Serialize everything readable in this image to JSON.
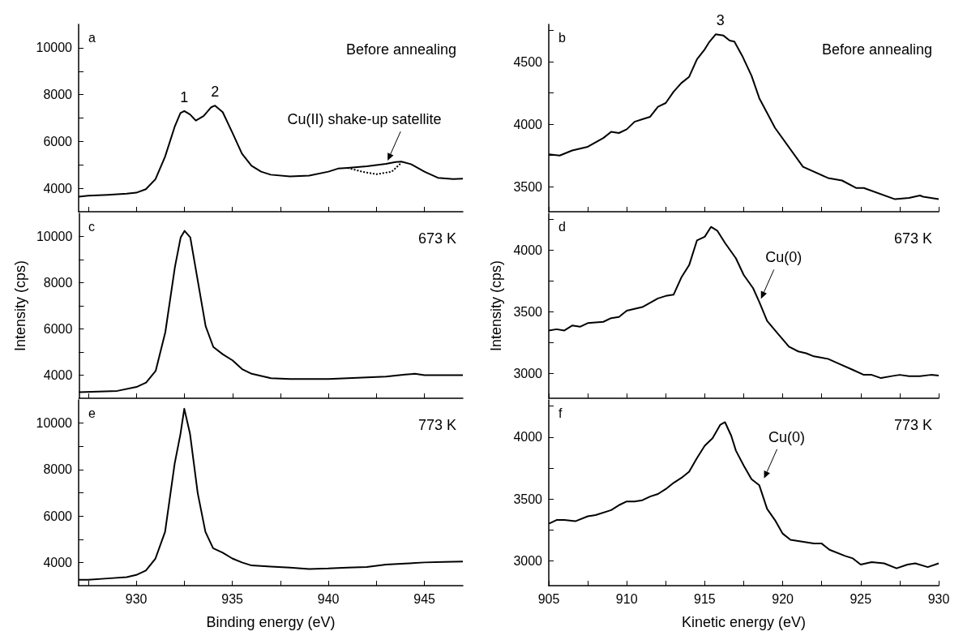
{
  "chart_data": [
    {
      "type": "line",
      "xlim": [
        927,
        947
      ],
      "xticks": [
        {
          "value": 927.5,
          "label": null
        },
        930,
        {
          "value": 932.5,
          "label": null
        },
        935,
        {
          "value": 937.5,
          "label": null
        },
        940,
        {
          "value": 942.5,
          "label": null
        },
        945
      ],
      "ylim": [
        3000,
        11000
      ],
      "yticks": [
        4000,
        {
          "value": 5000,
          "label": null
        },
        6000,
        {
          "value": 7000,
          "label": null
        },
        8000,
        {
          "value": 9000,
          "label": null
        },
        10000
      ],
      "tick_labels": "y",
      "annotations": [
        "a",
        "Before annealing",
        {
          "text": "1",
          "x": 932.5,
          "y": 7300
        },
        {
          "text": "2",
          "x": 934.1,
          "y": 7530
        },
        {
          "text": "Cu(II) shake-up satellite",
          "x": 943,
          "y": 5040
        }
      ],
      "series": [
        {
          "color": "#000000",
          "x": [
            927,
            927.5,
            928.5,
            929.5,
            930,
            930.5,
            931,
            931.5,
            932,
            932.3,
            932.5,
            932.8,
            933.1,
            933.5,
            933.9,
            934.1,
            934.5,
            935,
            935.5,
            936,
            936.5,
            937,
            938,
            939,
            940,
            940.5,
            941,
            942,
            943,
            943.5,
            943.8,
            944.3,
            945,
            945.7,
            946.5,
            947
          ],
          "values": [
            3640,
            3680,
            3720,
            3770,
            3810,
            3960,
            4390,
            5350,
            6630,
            7210,
            7300,
            7150,
            6890,
            7080,
            7460,
            7530,
            7250,
            6380,
            5480,
            4960,
            4710,
            4580,
            4510,
            4540,
            4710,
            4840,
            4870,
            4940,
            5040,
            5120,
            5140,
            5030,
            4710,
            4450,
            4390,
            4410
          ]
        },
        {
          "color": "#000000",
          "line_style": "dotted",
          "x": [
            941,
            941.8,
            942.5,
            943.3,
            943.8
          ],
          "values": [
            4870,
            4700,
            4600,
            4710,
            5090
          ]
        }
      ]
    },
    {
      "type": "line",
      "xlim": [
        905,
        930
      ],
      "xticks": [
        905,
        {
          "value": 907.5,
          "label": null
        },
        910,
        {
          "value": 912.5,
          "label": null
        },
        915,
        {
          "value": 917.5,
          "label": null
        },
        920,
        {
          "value": 922.5,
          "label": null
        },
        925,
        {
          "value": 927.5,
          "label": null
        },
        930
      ],
      "ylim": [
        3300,
        4800
      ],
      "yticks": [
        3500,
        {
          "value": 3750,
          "label": null
        },
        4000,
        {
          "value": 4250,
          "label": null
        },
        4500,
        {
          "value": 4750,
          "label": null
        }
      ],
      "tick_labels": "y",
      "annotations": [
        "b",
        "Before annealing",
        {
          "text": "3",
          "x": 916,
          "y": 4720
        }
      ],
      "series": [
        {
          "color": "#000000",
          "x": [
            905,
            905.7,
            906.5,
            907.5,
            908.5,
            909,
            909.5,
            910,
            910.5,
            911,
            911.5,
            912,
            912.5,
            913,
            913.5,
            914,
            914.5,
            915,
            915.3,
            915.7,
            916.2,
            916.6,
            916.9,
            917.4,
            918,
            918.5,
            919,
            919.5,
            921.3,
            922.9,
            923.8,
            924.7,
            925.2,
            927.2,
            928.1,
            928.8,
            929,
            930
          ],
          "values": [
            3760,
            3750,
            3790,
            3820,
            3890,
            3940,
            3930,
            3960,
            4020,
            4040,
            4060,
            4140,
            4170,
            4260,
            4330,
            4380,
            4520,
            4600,
            4660,
            4720,
            4710,
            4670,
            4662,
            4549,
            4388,
            4208,
            4090,
            3972,
            3660,
            3570,
            3550,
            3490,
            3490,
            3400,
            3410,
            3430,
            3420,
            3400
          ]
        }
      ]
    },
    {
      "type": "line",
      "xlim": [
        927,
        947
      ],
      "xticks": [
        {
          "value": 927.5,
          "label": null
        },
        930,
        {
          "value": 932.5,
          "label": null
        },
        935,
        {
          "value": 937.5,
          "label": null
        },
        940,
        {
          "value": 942.5,
          "label": null
        },
        945
      ],
      "ylim": [
        3000,
        11000
      ],
      "yticks": [
        4000,
        {
          "value": 5000,
          "label": null
        },
        6000,
        {
          "value": 7000,
          "label": null
        },
        8000,
        {
          "value": 9000,
          "label": null
        },
        10000
      ],
      "tick_labels": "y",
      "ylabel": "Intensity (cps)",
      "annotations": [
        "c",
        "673 K"
      ],
      "series": [
        {
          "color": "#000000",
          "x": [
            927,
            928,
            929,
            930,
            930.5,
            931,
            931.5,
            932,
            932.3,
            932.5,
            932.8,
            933.2,
            933.6,
            934,
            934.5,
            935,
            935.5,
            936,
            937,
            938,
            939,
            940,
            941,
            942,
            943,
            944,
            944.5,
            945,
            946,
            947
          ],
          "values": [
            3260,
            3290,
            3320,
            3490,
            3680,
            4190,
            5860,
            8680,
            9960,
            10240,
            9960,
            8040,
            6120,
            5220,
            4900,
            4640,
            4260,
            4060,
            3870,
            3830,
            3830,
            3830,
            3870,
            3900,
            3940,
            4030,
            4060,
            4000,
            4000,
            4000
          ]
        }
      ]
    },
    {
      "type": "line",
      "xlim": [
        905,
        930
      ],
      "xticks": [
        905,
        {
          "value": 907.5,
          "label": null
        },
        910,
        {
          "value": 912.5,
          "label": null
        },
        915,
        {
          "value": 917.5,
          "label": null
        },
        920,
        {
          "value": 922.5,
          "label": null
        },
        925,
        {
          "value": 927.5,
          "label": null
        },
        930
      ],
      "ylim": [
        2800,
        4300
      ],
      "yticks": [
        3000,
        {
          "value": 3250,
          "label": null
        },
        3500,
        {
          "value": 3750,
          "label": null
        },
        4000,
        {
          "value": 4250,
          "label": null
        }
      ],
      "tick_labels": "y",
      "ylabel": "Intensity (cps)",
      "annotations": [
        "d",
        "673 K",
        {
          "text": "Cu(0)",
          "x": 918.5,
          "y": 3580
        }
      ],
      "series": [
        {
          "color": "#000000",
          "x": [
            905,
            905.5,
            906,
            906.5,
            907,
            907.5,
            908.5,
            909,
            909.5,
            910,
            911,
            912,
            912.5,
            913,
            913.5,
            914,
            914.5,
            915,
            915.4,
            915.8,
            916.3,
            917,
            917.5,
            918.1,
            918.5,
            919,
            919.7,
            920.4,
            921,
            921.5,
            922,
            922.9,
            923.6,
            924.5,
            925.2,
            925.7,
            926.3,
            927,
            927.5,
            928.1,
            928.8,
            929.5,
            930
          ],
          "values": [
            3350,
            3360,
            3350,
            3390,
            3380,
            3410,
            3420,
            3450,
            3460,
            3510,
            3540,
            3610,
            3630,
            3640,
            3780,
            3880,
            4080,
            4110,
            4190,
            4160,
            4060,
            3935,
            3800,
            3693,
            3580,
            3427,
            3322,
            3218,
            3180,
            3165,
            3140,
            3120,
            3080,
            3030,
            2990,
            2990,
            2964,
            2980,
            2990,
            2980,
            2980,
            2990,
            2984
          ]
        }
      ]
    },
    {
      "type": "line",
      "xlim": [
        927,
        947
      ],
      "xticks": [
        {
          "value": 927.5,
          "label": null
        },
        930,
        {
          "value": 932.5,
          "label": null
        },
        935,
        {
          "value": 937.5,
          "label": null
        },
        940,
        {
          "value": 942.5,
          "label": null
        },
        945
      ],
      "ylim": [
        3000,
        11000
      ],
      "yticks": [
        4000,
        {
          "value": 5000,
          "label": null
        },
        6000,
        {
          "value": 7000,
          "label": null
        },
        8000,
        {
          "value": 9000,
          "label": null
        },
        10000
      ],
      "xlabel": "Binding energy (eV)",
      "annotations": [
        "e",
        "773 K"
      ],
      "series": [
        {
          "color": "#000000",
          "x": [
            927,
            927.5,
            928.5,
            929.5,
            930,
            930.5,
            931,
            931.5,
            932,
            932.3,
            932.5,
            932.8,
            933.2,
            933.6,
            934,
            934.5,
            935,
            935.5,
            936,
            937,
            938,
            939,
            940,
            941,
            942,
            943,
            944,
            945,
            946,
            947
          ],
          "values": [
            3250,
            3250,
            3310,
            3370,
            3460,
            3650,
            4170,
            5320,
            8260,
            9530,
            10620,
            9530,
            6980,
            5320,
            4610,
            4420,
            4170,
            4000,
            3870,
            3820,
            3780,
            3720,
            3740,
            3780,
            3800,
            3910,
            3950,
            4000,
            4020,
            4040
          ]
        }
      ]
    },
    {
      "type": "line",
      "xlim": [
        905,
        930
      ],
      "xticks": [
        905,
        {
          "value": 907.5,
          "label": null
        },
        910,
        {
          "value": 912.5,
          "label": null
        },
        915,
        {
          "value": 917.5,
          "label": null
        },
        920,
        {
          "value": 922.5,
          "label": null
        },
        925,
        {
          "value": 927.5,
          "label": null
        },
        930
      ],
      "ylim": [
        2800,
        4300
      ],
      "yticks": [
        3000,
        {
          "value": 3250,
          "label": null
        },
        3500,
        {
          "value": 3750,
          "label": null
        },
        4000,
        {
          "value": 4250,
          "label": null
        }
      ],
      "xlabel": "Kinetic energy (eV)",
      "annotations": [
        "f",
        "773 K",
        {
          "text": "Cu(0)",
          "x": 918.7,
          "y": 3640
        }
      ],
      "series": [
        {
          "color": "#000000",
          "x": [
            905,
            905.5,
            906,
            906.7,
            907.5,
            908,
            909,
            909.5,
            910,
            910.5,
            911,
            911.5,
            912,
            912.5,
            913,
            913.5,
            914,
            914.5,
            915,
            915.5,
            916,
            916.3,
            916.7,
            917,
            917.5,
            918,
            918.5,
            919,
            919.5,
            920,
            920.5,
            921,
            922,
            922.5,
            923,
            924,
            924.5,
            925,
            925.7,
            926.5,
            927.3,
            928,
            928.5,
            929.3,
            930
          ],
          "values": [
            3300,
            3330,
            3330,
            3320,
            3360,
            3370,
            3410,
            3450,
            3480,
            3480,
            3490,
            3520,
            3540,
            3580,
            3630,
            3670,
            3720,
            3830,
            3930,
            3990,
            4100,
            4120,
            4010,
            3890,
            3770,
            3660,
            3610,
            3420,
            3330,
            3220,
            3170,
            3160,
            3140,
            3140,
            3090,
            3040,
            3020,
            2970,
            2990,
            2980,
            2940,
            2970,
            2980,
            2950,
            2980
          ]
        }
      ]
    }
  ]
}
